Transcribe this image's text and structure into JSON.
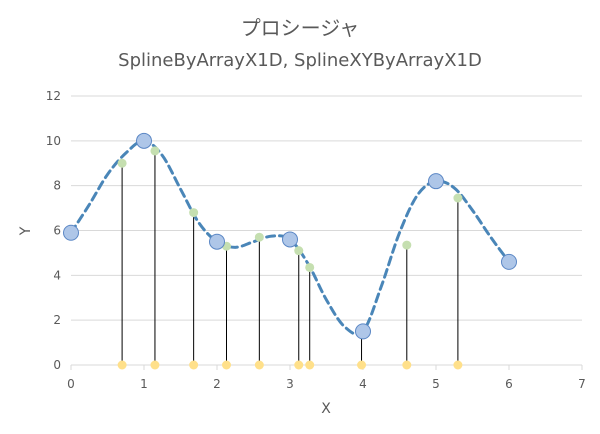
{
  "chart_data": {
    "type": "scatter",
    "title": "プロシージャ",
    "subtitle": "SplineByArrayX1D, SplineXYByArrayX1D",
    "xlabel": "X",
    "ylabel": "Y",
    "xlim": [
      0,
      7
    ],
    "ylim": [
      0,
      12
    ],
    "xticks": [
      "0",
      "1",
      "2",
      "3",
      "4",
      "5",
      "6",
      "7"
    ],
    "yticks": [
      "0",
      "2",
      "4",
      "6",
      "8",
      "10",
      "12"
    ],
    "grid": "horizontal",
    "legend": "none",
    "colors": {
      "control": "#aec6e8",
      "control_edge": "#5b87c5",
      "curve": "#4a86b8",
      "interp": "#c5dfb0",
      "base": "#ffe08a",
      "stem": "#000000",
      "grid": "#d9d9d9"
    },
    "control_points": {
      "x": [
        0,
        1,
        2,
        3,
        4,
        5,
        6
      ],
      "y": [
        5.9,
        10.0,
        5.5,
        5.6,
        1.5,
        8.2,
        4.6
      ]
    },
    "interpolated_points": {
      "x": [
        0.7,
        1.15,
        1.68,
        2.13,
        2.58,
        3.12,
        3.27,
        3.98,
        4.6,
        5.3
      ],
      "y": [
        9.0,
        9.55,
        6.8,
        5.3,
        5.7,
        5.1,
        4.35,
        1.5,
        5.35,
        7.45
      ]
    },
    "curve": {
      "x": [
        0,
        0.25,
        0.5,
        0.75,
        1.0,
        1.25,
        1.5,
        1.75,
        2.0,
        2.25,
        2.5,
        2.75,
        3.0,
        3.25,
        3.5,
        3.75,
        4.0,
        4.25,
        4.5,
        4.75,
        5.0,
        5.25,
        5.5,
        5.75,
        6.0
      ],
      "y": [
        5.9,
        7.15,
        8.5,
        9.45,
        10.0,
        9.35,
        7.85,
        6.35,
        5.5,
        5.25,
        5.5,
        5.75,
        5.6,
        4.5,
        2.9,
        1.7,
        1.5,
        3.5,
        5.9,
        7.6,
        8.2,
        7.9,
        6.9,
        5.7,
        4.6
      ]
    }
  }
}
